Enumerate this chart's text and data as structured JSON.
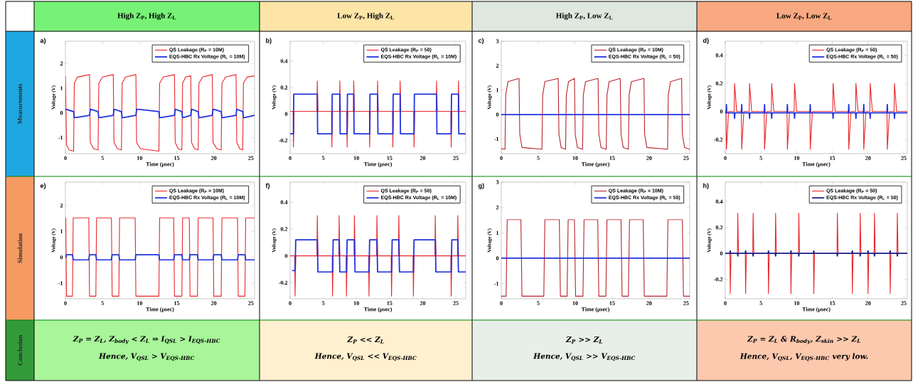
{
  "chart_data": [
    {
      "type": "line",
      "title": "High Z$_{P}$, High Z$_{L}$",
      "xlabel": "Time (μsec)",
      "ylabel": "Voltage (V)",
      "xlim": [
        0,
        25.5
      ],
      "ylim": [
        -1.65,
        2.9
      ],
      "xticks": [
        0,
        5,
        10,
        15,
        20,
        25
      ],
      "yticks": [
        -1,
        0,
        1,
        2
      ],
      "legend": "top right",
      "annotations": [
        "a)",
        "Measurements"
      ],
      "series": [
        {
          "name": "QS Leakage (R$_{P}$ = 10M)",
          "color": "#e8262a",
          "x": [
            0,
            0.15,
            0.5,
            1.1,
            1.2,
            1.6,
            3.26,
            3.35,
            3.8,
            4.4,
            4.5,
            5,
            6.45,
            6.55,
            7,
            7.55,
            7.65,
            8.1,
            9.5,
            9.6,
            10.1,
            12.6,
            12.7,
            13.2,
            14.7,
            14.8,
            15.2,
            15.7,
            15.8,
            16.2,
            16.9,
            17,
            17.4,
            17.9,
            18,
            18.5,
            19.8,
            19.9,
            20.4,
            21,
            21.1,
            21.6,
            23,
            23.1,
            23.5,
            23.9,
            24,
            24.5,
            25.5
          ],
          "values": [
            1.5,
            -1.3,
            -1.5,
            -1.55,
            1.2,
            1.45,
            1.55,
            -1.2,
            -1.45,
            -1.5,
            1.2,
            1.45,
            1.55,
            -1.2,
            -1.45,
            -1.5,
            1.2,
            1.45,
            1.55,
            -1.2,
            -1.45,
            -1.55,
            1.2,
            1.45,
            1.55,
            -1.2,
            -1.45,
            -1.5,
            1.2,
            1.45,
            1.5,
            -1.2,
            -1.45,
            -1.5,
            1.2,
            1.45,
            1.55,
            -1.2,
            -1.45,
            -1.5,
            1.2,
            1.45,
            1.55,
            -1.2,
            -1.45,
            -1.5,
            1.2,
            1.45,
            1.5
          ]
        },
        {
          "name": "EQS-HBC Rx Voltage (R$_{L}$ = 10M)",
          "color": "#2233dd",
          "x": [
            0,
            1.1,
            1.2,
            3.26,
            3.35,
            4.4,
            4.5,
            6.45,
            6.55,
            7.55,
            7.65,
            9.5,
            9.6,
            12.6,
            12.7,
            14.7,
            14.8,
            15.7,
            15.8,
            16.9,
            17,
            17.9,
            18,
            19.8,
            19.9,
            21,
            21.1,
            23,
            23.1,
            23.9,
            24,
            25.5
          ],
          "values": [
            0.15,
            0.05,
            -0.2,
            -0.1,
            0.15,
            0.05,
            -0.2,
            -0.1,
            0.15,
            0.05,
            -0.2,
            -0.1,
            0.15,
            0.05,
            -0.2,
            -0.1,
            0.15,
            0.05,
            -0.2,
            -0.1,
            0.15,
            0.05,
            -0.2,
            -0.1,
            0.15,
            0.05,
            -0.2,
            -0.1,
            0.15,
            0.05,
            -0.2,
            -0.1
          ]
        }
      ]
    },
    {
      "type": "line",
      "title": "Low Z$_{P}$, High Z$_{L}$",
      "xlabel": "Time (μsec)",
      "ylabel": "Voltage (V)",
      "xlim": [
        0,
        26.5
      ],
      "ylim": [
        -0.3,
        0.55
      ],
      "xticks": [
        0,
        5,
        10,
        15,
        20,
        25
      ],
      "yticks": [
        -0.2,
        0,
        0.2,
        0.4
      ],
      "legend": "top right",
      "annotations": [
        "b)"
      ],
      "series": [
        {
          "name": "QS Leakage (R$_{P}$ = 50)",
          "color": "#e8262a",
          "x": [
            0,
            0.45,
            0.5,
            0.6,
            4.05,
            4.1,
            4.2,
            6.25,
            6.3,
            6.4,
            7.45,
            7.5,
            7.6,
            8.55,
            8.6,
            8.7,
            9.55,
            9.6,
            9.7,
            11.95,
            12.0,
            12.1,
            13.15,
            13.2,
            13.3,
            15.45,
            15.5,
            15.6,
            16.55,
            16.6,
            16.7,
            18.65,
            18.7,
            18.8,
            22.05,
            22.1,
            22.2,
            24.25,
            24.3,
            24.4,
            25.35,
            25.4,
            25.5,
            26.5
          ],
          "values": [
            0.02,
            0.02,
            -0.25,
            0.02,
            0.02,
            0.25,
            0.02,
            0.02,
            -0.25,
            0.02,
            0.02,
            0.25,
            0.02,
            0.02,
            -0.25,
            0.02,
            0.02,
            0.25,
            0.02,
            0.02,
            -0.25,
            0.02,
            0.02,
            0.25,
            0.02,
            0.02,
            -0.25,
            0.02,
            0.02,
            0.25,
            0.02,
            0.02,
            -0.25,
            0.02,
            0.02,
            0.25,
            0.02,
            0.02,
            -0.25,
            0.02,
            0.02,
            0.25,
            0.02,
            0.02
          ]
        },
        {
          "name": "EQS-HBC Rx Voltage (R$_{L}$ = 10M)",
          "color": "#2233dd",
          "x": [
            0,
            0.5,
            0.55,
            4.1,
            4.15,
            6.3,
            6.35,
            7.5,
            7.55,
            8.6,
            8.65,
            9.6,
            9.65,
            12.0,
            12.05,
            13.2,
            13.25,
            15.5,
            15.55,
            16.6,
            16.65,
            18.7,
            18.75,
            22.1,
            22.15,
            24.3,
            24.35,
            25.4,
            25.45,
            26.5
          ],
          "values": [
            -0.15,
            -0.15,
            0.15,
            0.15,
            -0.15,
            -0.15,
            0.15,
            0.15,
            -0.15,
            -0.15,
            0.15,
            0.15,
            -0.15,
            -0.15,
            0.15,
            0.15,
            -0.15,
            -0.15,
            0.15,
            0.15,
            -0.15,
            -0.15,
            0.15,
            0.15,
            -0.15,
            -0.15,
            0.15,
            0.15,
            -0.15,
            -0.15
          ]
        }
      ]
    },
    {
      "type": "line",
      "title": "High Z$_{P}$, Low Z$_{L}$",
      "xlabel": "Time (μsec)",
      "ylabel": "Voltage (V)",
      "xlim": [
        0,
        25.5
      ],
      "ylim": [
        -1.6,
        3
      ],
      "xticks": [
        0,
        5,
        10,
        15,
        20,
        25
      ],
      "yticks": [
        -1,
        0,
        1,
        2,
        3
      ],
      "legend": "top right",
      "annotations": [
        "c)"
      ],
      "series": [
        {
          "name": "QS Leakage (R$_{P}$ = 10M)",
          "color": "#b8232a",
          "x": [
            0,
            0.5,
            0.6,
            0.9,
            2.4,
            2.5,
            2.8,
            5.5,
            5.6,
            5.9,
            7.7,
            7.8,
            8.1,
            8.7,
            8.8,
            9.1,
            9.9,
            10,
            10.3,
            11,
            11.1,
            11.4,
            13.1,
            13.2,
            13.5,
            14.2,
            14.3,
            14.6,
            16.1,
            16.2,
            16.5,
            17.2,
            17.3,
            17.6,
            19.3,
            19.4,
            19.7,
            22.5,
            22.6,
            22.9,
            24.4,
            24.5,
            24.8,
            25.5
          ],
          "values": [
            -1.4,
            -1.42,
            0.8,
            1.35,
            1.48,
            -0.8,
            -1.35,
            -1.42,
            0.8,
            1.35,
            1.48,
            -0.8,
            -1.35,
            -1.42,
            0.8,
            1.35,
            1.48,
            -0.8,
            -1.35,
            -1.42,
            0.8,
            1.35,
            1.48,
            -0.8,
            -1.35,
            -1.42,
            0.8,
            1.35,
            1.48,
            -0.8,
            -1.35,
            -1.42,
            0.8,
            1.35,
            1.48,
            -0.8,
            -1.35,
            -1.42,
            0.8,
            1.35,
            1.48,
            -0.8,
            -1.35,
            -1.42
          ]
        },
        {
          "name": "EQS-HBC Rx Voltage (R$_{L}$ = 50)",
          "color": "#2233dd",
          "x": [
            0,
            25.5
          ],
          "values": [
            0,
            0
          ]
        }
      ]
    },
    {
      "type": "line",
      "title": "Low Z$_{P}$, Low Z$_{L}$",
      "xlabel": "Time (μsec)",
      "ylabel": "Voltage (V)",
      "xlim": [
        0,
        25.5
      ],
      "ylim": [
        -0.3,
        0.5
      ],
      "xticks": [
        0,
        5,
        10,
        15,
        20,
        25
      ],
      "yticks": [
        -0.2,
        0,
        0.2,
        0.4
      ],
      "legend": "top right",
      "annotations": [
        "d)"
      ],
      "series": [
        {
          "name": "QS Leakage (R$_{P}$ = 50)",
          "color": "#e8262a",
          "x": [
            0,
            0.11,
            0.16,
            0.46,
            1.25,
            1.3,
            1.6,
            2.25,
            2.3,
            2.6,
            3.35,
            3.4,
            3.7,
            5.45,
            5.5,
            5.8,
            6.45,
            6.5,
            6.8,
            8.65,
            8.7,
            9.0,
            9.65,
            9.7,
            10.0,
            11.85,
            11.9,
            12.2,
            15.05,
            15.1,
            15.4,
            17.25,
            17.3,
            17.6,
            18.25,
            18.3,
            18.6,
            19.35,
            19.4,
            19.7,
            20.25,
            20.3,
            20.6,
            22.65,
            22.7,
            23.0,
            23.65,
            23.7,
            24.0,
            25.5
          ],
          "values": [
            0,
            0,
            -0.27,
            0,
            0,
            0.2,
            0,
            0,
            -0.27,
            0,
            0,
            0.2,
            0,
            0,
            -0.27,
            0,
            0,
            0.2,
            0,
            0,
            -0.27,
            0,
            0,
            0.2,
            0,
            0,
            -0.27,
            0,
            0,
            0.2,
            0,
            0,
            -0.27,
            0,
            0,
            0.2,
            0,
            0,
            -0.27,
            0,
            0,
            0.2,
            0,
            0,
            -0.27,
            0,
            0,
            0.2,
            0,
            0
          ]
        },
        {
          "name": "EQS-HBC Rx Voltage (R$_{L}$ = 50)",
          "color": "#2233dd",
          "x": [
            0,
            0.11,
            0.16,
            0.21,
            1.25,
            1.3,
            1.35,
            2.25,
            2.3,
            2.35,
            3.35,
            3.4,
            3.45,
            5.45,
            5.5,
            5.55,
            6.45,
            6.5,
            6.55,
            8.65,
            8.7,
            8.75,
            9.65,
            9.7,
            9.75,
            11.85,
            11.9,
            11.95,
            15.05,
            15.1,
            15.15,
            17.25,
            17.3,
            17.35,
            18.25,
            18.3,
            18.35,
            19.35,
            19.4,
            19.45,
            20.25,
            20.3,
            20.35,
            22.65,
            22.7,
            22.75,
            23.65,
            23.7,
            23.75,
            25.5
          ],
          "values": [
            -0.01,
            -0.01,
            0.05,
            -0.01,
            -0.01,
            -0.05,
            -0.01,
            -0.01,
            0.05,
            -0.01,
            -0.01,
            -0.05,
            -0.01,
            -0.01,
            0.05,
            -0.01,
            -0.01,
            -0.05,
            -0.01,
            -0.01,
            0.05,
            -0.01,
            -0.01,
            -0.05,
            -0.01,
            -0.01,
            0.05,
            -0.01,
            -0.01,
            -0.05,
            -0.01,
            -0.01,
            0.05,
            -0.01,
            -0.01,
            -0.05,
            -0.01,
            -0.01,
            0.05,
            -0.01,
            -0.01,
            -0.05,
            -0.01,
            -0.01,
            0.05,
            -0.01,
            -0.01,
            -0.05,
            -0.01,
            -0.01
          ]
        }
      ]
    },
    {
      "type": "line",
      "xlabel": "Time (μsec)",
      "ylabel": "Voltage (V)",
      "xlim": [
        0,
        25.5
      ],
      "ylim": [
        -1.6,
        2.9
      ],
      "xticks": [
        0,
        5,
        10,
        15,
        20,
        25
      ],
      "yticks": [
        -1,
        0,
        1,
        2
      ],
      "legend": "top right",
      "annotations": [
        "e)",
        "Z$_{P}$ = Z$_{L}$, Z$_{body}$ < Z$_{L}$ ⇒ I$_{QSL}$ > I$_{EQS-HBC}$",
        "Hence, V$_{QSL}$ > V$_{EQS-HBC}$",
        "Simulation",
        "Conclusion"
      ],
      "series": [
        {
          "name": "QS Leakage (R$_{P}$ = 10M)",
          "color": "#e8262a",
          "x": [
            0,
            0.05,
            0.15,
            0.95,
            1.05,
            3.15,
            3.25,
            4.1,
            4.2,
            6.2,
            6.3,
            7.2,
            7.3,
            9.4,
            9.5,
            12.6,
            12.7,
            14.6,
            14.7,
            15.7,
            15.8,
            16.7,
            16.8,
            17.8,
            17.9,
            19.9,
            20.0,
            21,
            21.1,
            23.2,
            23.3,
            24.2,
            24.3,
            25.5
          ],
          "values": [
            1.52,
            1.52,
            -1.5,
            -1.5,
            1.52,
            1.52,
            -1.5,
            -1.5,
            1.52,
            1.52,
            -1.5,
            -1.5,
            1.52,
            1.52,
            -1.5,
            -1.5,
            1.52,
            1.52,
            -1.5,
            -1.5,
            1.52,
            1.52,
            -1.5,
            -1.5,
            1.52,
            1.52,
            -1.5,
            -1.5,
            1.52,
            1.52,
            -1.5,
            -1.5,
            1.52,
            1.52
          ]
        },
        {
          "name": "EQS-HBC Rx Voltage (R$_{L}$ = 10M)",
          "color": "#2233dd",
          "x": [
            0,
            0.05,
            0.15,
            0.95,
            1.05,
            3.15,
            3.25,
            4.1,
            4.2,
            6.2,
            6.3,
            7.2,
            7.3,
            9.4,
            9.5,
            12.6,
            12.7,
            14.6,
            14.7,
            15.7,
            15.8,
            16.7,
            16.8,
            17.8,
            17.9,
            19.9,
            20.0,
            21,
            21.1,
            23.2,
            23.3,
            24.2,
            24.3,
            25.5
          ],
          "values": [
            0,
            0,
            0.1,
            0.1,
            -0.1,
            -0.1,
            0.1,
            0.1,
            -0.1,
            -0.1,
            0.1,
            0.1,
            -0.1,
            -0.1,
            0.1,
            0.1,
            -0.1,
            -0.1,
            0.1,
            0.1,
            -0.1,
            -0.1,
            0.1,
            0.1,
            -0.1,
            -0.1,
            0.1,
            0.1,
            -0.1,
            -0.1,
            0.1,
            0.1,
            -0.1,
            -0.1
          ]
        }
      ]
    },
    {
      "type": "line",
      "xlabel": "Time (μsec)",
      "ylabel": "Voltage (V)",
      "xlim": [
        0,
        26.5
      ],
      "ylim": [
        -0.32,
        0.55
      ],
      "xticks": [
        0,
        5,
        10,
        15,
        20,
        25
      ],
      "yticks": [
        -0.2,
        0,
        0.2,
        0.4
      ],
      "legend": "top right",
      "annotations": [
        "f)",
        "Z$_{P}$ << Z$_{L}$",
        "Hence, V$_{QSL}$ << V$_{EQS-HBC}$"
      ],
      "series": [
        {
          "name": "QS Leakage (R$_{P}$ = 50)",
          "color": "#e8262a",
          "x": [
            0,
            0.7,
            0.75,
            0.85,
            4.05,
            4.1,
            4.2,
            6.35,
            6.4,
            6.5,
            7.35,
            7.4,
            7.5,
            8.45,
            8.5,
            8.6,
            9.65,
            9.7,
            9.8,
            11.85,
            11.9,
            12.0,
            13.05,
            13.1,
            13.2,
            15.25,
            15.3,
            15.4,
            16.35,
            16.4,
            16.5,
            18.55,
            18.6,
            18.7,
            21.85,
            21.9,
            22.0,
            24.25,
            24.3,
            24.4,
            25.25,
            25.3,
            25.4,
            26.5
          ],
          "values": [
            0,
            0,
            -0.3,
            0,
            0,
            0.3,
            0,
            0,
            -0.3,
            0,
            0,
            0.3,
            0,
            0,
            -0.3,
            0,
            0,
            0.3,
            0,
            0,
            -0.3,
            0,
            0,
            0.3,
            0,
            0,
            -0.3,
            0,
            0,
            0.3,
            0,
            0,
            -0.3,
            0,
            0,
            0.3,
            0,
            0,
            -0.3,
            0,
            0,
            0.3,
            0,
            0
          ]
        },
        {
          "name": "EQS-HBC Rx Voltage (R$_{L}$ = 10M)",
          "color": "#2233dd",
          "x": [
            0.3,
            0.75,
            0.85,
            4.1,
            4.2,
            6.4,
            6.5,
            7.4,
            7.5,
            8.5,
            8.6,
            9.7,
            9.8,
            11.9,
            12.0,
            13.1,
            13.2,
            15.3,
            15.4,
            16.4,
            16.5,
            18.6,
            18.7,
            21.9,
            22.0,
            24.3,
            24.4,
            25.3,
            25.4,
            26.5
          ],
          "values": [
            -0.11,
            -0.11,
            0.12,
            0.12,
            -0.12,
            -0.12,
            0.12,
            0.12,
            -0.12,
            -0.12,
            0.12,
            0.12,
            -0.12,
            -0.12,
            0.12,
            0.12,
            -0.12,
            -0.12,
            0.12,
            0.12,
            -0.12,
            -0.12,
            0.12,
            0.12,
            -0.12,
            -0.12,
            0.12,
            0.12,
            -0.12,
            -0.12
          ]
        }
      ]
    },
    {
      "type": "line",
      "xlabel": "Time (μsec)",
      "ylabel": "Voltage (V)",
      "xlim": [
        0,
        25.5
      ],
      "ylim": [
        -1.6,
        3
      ],
      "xticks": [
        0,
        5,
        10,
        15,
        20,
        25
      ],
      "yticks": [
        -1,
        0,
        1,
        2,
        3
      ],
      "legend": "top right",
      "annotations": [
        "g)",
        "Z$_{P}$ >> Z$_{L}$",
        "Hence, V$_{QSL}$ >> V$_{EQS-HBC}$"
      ],
      "series": [
        {
          "name": "QS Leakage (R$_{P}$ = 10M)",
          "color": "#b8232a",
          "x": [
            0,
            0.65,
            0.8,
            2.65,
            2.8,
            5.75,
            5.9,
            7.85,
            8.0,
            8.9,
            9.05,
            9.9,
            10.05,
            11.05,
            11.2,
            13.05,
            13.2,
            14.15,
            14.3,
            16.2,
            16.35,
            17.2,
            17.35,
            19.2,
            19.35,
            22.4,
            22.55,
            24.5,
            24.65,
            25.5
          ],
          "values": [
            -1.5,
            -1.5,
            1.52,
            1.52,
            -1.5,
            -1.5,
            1.52,
            1.52,
            -1.5,
            -1.5,
            1.52,
            1.52,
            -1.5,
            -1.5,
            1.52,
            1.52,
            -1.5,
            -1.5,
            1.52,
            1.52,
            -1.5,
            -1.5,
            1.52,
            1.52,
            -1.5,
            -1.5,
            1.52,
            1.52,
            -1.5,
            -1.5
          ]
        },
        {
          "name": "EQS-HBC Rx Voltage (R$_{L}$ = 50)",
          "color": "#2233dd",
          "x": [
            0,
            25.5
          ],
          "values": [
            0,
            0
          ]
        }
      ]
    },
    {
      "type": "line",
      "xlabel": "Time (μsec)",
      "ylabel": "Voltage (V)",
      "xlim": [
        0,
        25.5
      ],
      "ylim": [
        -0.35,
        0.55
      ],
      "xticks": [
        0,
        5,
        10,
        15,
        20,
        25
      ],
      "yticks": [
        -0.2,
        0,
        0.2,
        0.4
      ],
      "legend": "top right",
      "annotations": [
        "h)",
        "Z$_{P}$ = Z$_{L}$ & R$_{body}$, Z$_{skin}$ >> Z$_{L}$",
        "Hence, V$_{QSL}$, V$_{EQS-HBC}$ very low."
      ],
      "series": [
        {
          "name": "QS Leakage (R$_{P}$ = 50)",
          "color": "#e8262a",
          "x": [
            0,
            0.65,
            0.7,
            0.8,
            1.7,
            1.75,
            1.85,
            2.8,
            2.85,
            2.95,
            3.85,
            3.9,
            4.0,
            6.0,
            6.05,
            6.15,
            7.0,
            7.05,
            7.15,
            9.15,
            9.2,
            9.3,
            10.25,
            10.3,
            10.4,
            12.35,
            12.4,
            12.5,
            15.65,
            15.7,
            15.8,
            17.75,
            17.8,
            17.9,
            18.85,
            18.9,
            19.0,
            19.95,
            20,
            20.1,
            20.85,
            20.9,
            21.0,
            23.05,
            23.1,
            23.2,
            24.05,
            24.1,
            24.2,
            25.5
          ],
          "values": [
            0,
            0,
            -0.31,
            0,
            0,
            0.31,
            0,
            0,
            -0.31,
            0,
            0,
            0.31,
            0,
            0,
            -0.31,
            0,
            0,
            0.31,
            0,
            0,
            -0.31,
            0,
            0,
            0.31,
            0,
            0,
            -0.31,
            0,
            0,
            0.31,
            0,
            0,
            -0.31,
            0,
            0,
            0.31,
            0,
            0,
            -0.31,
            0,
            0,
            0.31,
            0,
            0,
            -0.31,
            0,
            0,
            0.31,
            0,
            0
          ]
        },
        {
          "name": "EQS-HBC Rx Voltage (R$_{L}$ = 50)",
          "color": "#1b1f8a",
          "x": [
            0,
            0.65,
            0.7,
            0.75,
            1.7,
            1.75,
            1.8,
            2.8,
            2.85,
            2.9,
            3.85,
            3.9,
            3.95,
            6.0,
            6.05,
            6.1,
            7.0,
            7.05,
            7.1,
            9.15,
            9.2,
            9.25,
            10.25,
            10.3,
            10.35,
            12.35,
            12.4,
            12.45,
            15.65,
            15.7,
            15.75,
            17.75,
            17.8,
            17.85,
            18.85,
            18.9,
            18.95,
            19.95,
            20,
            20.05,
            20.85,
            20.9,
            20.95,
            23.05,
            23.1,
            23.15,
            24.05,
            24.1,
            24.15,
            25.5
          ],
          "values": [
            0,
            0,
            0.02,
            0,
            0,
            -0.02,
            0,
            0,
            0.02,
            0,
            0,
            -0.02,
            0,
            0,
            0.02,
            0,
            0,
            -0.02,
            0,
            0,
            0.02,
            0,
            0,
            -0.02,
            0,
            0,
            0.02,
            0,
            0,
            -0.02,
            0,
            0,
            0.02,
            0,
            0,
            -0.02,
            0,
            0,
            0.02,
            0,
            0,
            -0.02,
            0,
            0,
            0.02,
            0,
            0,
            -0.02,
            0,
            0
          ]
        }
      ]
    }
  ]
}
